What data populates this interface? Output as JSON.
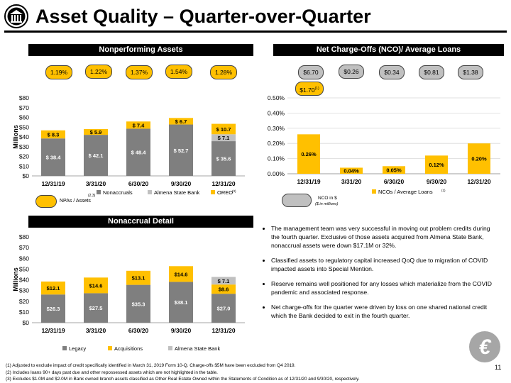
{
  "title": "Asset Quality – Quarter-over-Quarter",
  "page_number": "11",
  "colors": {
    "gold": "#FFC000",
    "gray": "#C0C0C0",
    "dark": "#7F7F7F",
    "black": "#000000"
  },
  "npa_section": {
    "header": "Nonperforming Assets",
    "pills": [
      "1.19%",
      "1.22%",
      "1.37%",
      "1.54%",
      "1.28%"
    ],
    "pill_legend": "NPAs / Assets",
    "pill_legend_note": "(2,3)",
    "ylabel": "Millions"
  },
  "nco_section": {
    "header": "Net Charge-Offs (NCO)/ Average Loans",
    "pills": [
      "$6.70",
      "$0.26",
      "$0.34",
      "$0.81",
      "$1.38"
    ],
    "extra_pill": "$1.70",
    "extra_pill_note": "(1)",
    "pill_legend": "NCO in $",
    "pill_legend_sub": "($ in millions)"
  },
  "nonaccrual_section": {
    "header": "Nonaccrual Detail",
    "ylabel": "Millions"
  },
  "chart_data": [
    {
      "type": "bar",
      "stacked": true,
      "categories": [
        "12/31/19",
        "3/31/20",
        "6/30/20",
        "9/30/20",
        "12/31/20"
      ],
      "series": [
        {
          "name": "Nonaccruals",
          "color": "#7F7F7F",
          "values": [
            38.4,
            42.1,
            48.4,
            52.7,
            35.6
          ],
          "labels": [
            "$ 38.4",
            "$ 42.1",
            "$ 48.4",
            "$ 52.7",
            "$ 35.6"
          ]
        },
        {
          "name": "Almena State Bank",
          "color": "#C0C0C0",
          "values": [
            0,
            0,
            0,
            0,
            7.1
          ],
          "labels": [
            "",
            "",
            "",
            "",
            "$ 7.1"
          ]
        },
        {
          "name": "OREO",
          "name_note": "(3)",
          "color": "#FFC000",
          "values": [
            8.3,
            5.9,
            7.4,
            6.7,
            10.7
          ],
          "labels": [
            "$ 8.3",
            "$ 5.9",
            "$ 7.4",
            "$ 6.7",
            "$ 10.7"
          ]
        }
      ],
      "yticks": [
        "$0",
        "$10",
        "$20",
        "$30",
        "$40",
        "$50",
        "$60",
        "$70",
        "$80"
      ],
      "ylim": [
        0,
        80
      ],
      "ylabel": "Millions",
      "legend": "bottom"
    },
    {
      "type": "bar",
      "categories": [
        "12/31/19",
        "3/31/20",
        "6/30/20",
        "9/30/20",
        "12/31/20"
      ],
      "series": [
        {
          "name": "NCOs / Average Loans",
          "name_note": "(1)",
          "color": "#FFC000",
          "values": [
            0.26,
            0.04,
            0.05,
            0.12,
            0.2
          ],
          "labels": [
            "0.26%",
            "0.04%",
            "0.05%",
            "0.12%",
            "0.20%"
          ]
        }
      ],
      "yticks": [
        "0.00%",
        "0.10%",
        "0.20%",
        "0.30%",
        "0.40%",
        "0.50%"
      ],
      "ylim": [
        0,
        0.5
      ],
      "legend": "bottom"
    },
    {
      "type": "bar",
      "stacked": true,
      "categories": [
        "12/31/19",
        "3/31/20",
        "6/30/20",
        "9/30/20",
        "12/31/20"
      ],
      "series": [
        {
          "name": "Legacy",
          "color": "#7F7F7F",
          "values": [
            26.3,
            27.5,
            35.3,
            38.1,
            27.0
          ],
          "labels": [
            "$26.3",
            "$27.5",
            "$35.3",
            "$38.1",
            "$27.0"
          ]
        },
        {
          "name": "Acquisitions",
          "color": "#FFC000",
          "values": [
            12.1,
            14.6,
            13.1,
            14.6,
            8.6
          ],
          "labels": [
            "$12.1",
            "$14.6",
            "$13.1",
            "$14.6",
            "$8.6"
          ]
        },
        {
          "name": "Almena State Bank",
          "color": "#C0C0C0",
          "values": [
            0,
            0,
            0,
            0,
            7.1
          ],
          "labels": [
            "",
            "",
            "",
            "",
            "$ 7.1"
          ]
        }
      ],
      "yticks": [
        "$0",
        "$10",
        "$20",
        "$30",
        "$40",
        "$50",
        "$60",
        "$70",
        "$80"
      ],
      "ylim": [
        0,
        80
      ],
      "ylabel": "Millions",
      "legend": "bottom"
    }
  ],
  "bullets": [
    "The management team was very successful in moving out problem credits during the fourth quarter.  Exclusive of those assets acquired from Almena State Bank, nonaccrual assets were down $17.1M or 32%.",
    "Classified assets to regulatory capital increased QoQ due to migration of COVID impacted assets into Special Mention.",
    "Reserve remains well positioned for any losses which materialize from the COVID pandemic and associated response.",
    "Net charge-offs for the quarter were driven by loss on one shared national credit which the Bank decided to exit in the fourth quarter."
  ],
  "footnotes": [
    "(1)    Adjusted to exclude impact of credit specifically identified in March 31, 2019 Form 10-Q.  Charge-offs $5M have been excluded from Q4 2019.",
    "(2)    Includes loans 90+ days past due and other repossessed assets which are not highlighted in the table.",
    "(3)    Excludes $1.0M and $2.0M in Bank owned branch assets classified as Other Real Estate Owned within the Statements of Condition as of 12/31/20 and 9/30/20, respectively."
  ]
}
